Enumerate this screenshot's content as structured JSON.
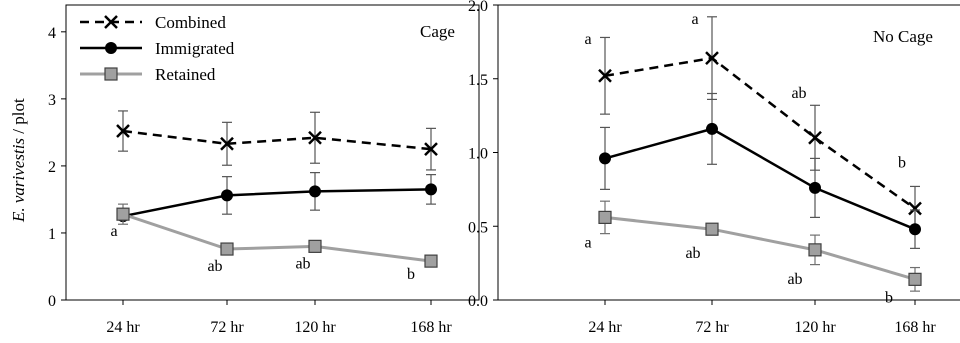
{
  "chart_data": [
    {
      "type": "line",
      "panel_label": "Cage",
      "ylabel_italic": "E. varivestis",
      "ylabel_rest": " / plot",
      "categories": [
        "24 hr",
        "72 hr",
        "120 hr",
        "168 hr"
      ],
      "ylim": [
        0,
        4.4
      ],
      "yticks": [
        "0",
        "1",
        "2",
        "3",
        "4"
      ],
      "grid": false,
      "legend": "top-left",
      "series": [
        {
          "name": "Combined",
          "style": "dashed",
          "color": "#000000",
          "marker": "x",
          "values": [
            2.52,
            2.33,
            2.42,
            2.25
          ],
          "errors": [
            0.3,
            0.32,
            0.38,
            0.31
          ]
        },
        {
          "name": "Immigrated",
          "style": "solid",
          "color": "#000000",
          "marker": "circle",
          "values": [
            1.25,
            1.56,
            1.62,
            1.65
          ],
          "errors": [
            0.0,
            0.28,
            0.28,
            0.22
          ]
        },
        {
          "name": "Retained",
          "style": "solid",
          "color": "#a0a0a0",
          "marker": "square",
          "values": [
            1.28,
            0.76,
            0.8,
            0.58
          ],
          "errors": [
            0.15,
            0.0,
            0.0,
            0.0
          ]
        }
      ],
      "annotations": [
        {
          "text": "a",
          "series": "Retained",
          "index": 0
        },
        {
          "text": "ab",
          "series": "Retained",
          "index": 1
        },
        {
          "text": "ab",
          "series": "Retained",
          "index": 2
        },
        {
          "text": "b",
          "series": "Retained",
          "index": 3
        }
      ]
    },
    {
      "type": "line",
      "panel_label": "No Cage",
      "categories": [
        "24 hr",
        "72 hr",
        "120 hr",
        "168 hr"
      ],
      "ylim": [
        0,
        2.0
      ],
      "yticks": [
        "0.0",
        "0.5",
        "1.0",
        "1.5",
        "2.0"
      ],
      "grid": false,
      "series": [
        {
          "name": "Combined",
          "style": "dashed",
          "color": "#000000",
          "marker": "x",
          "values": [
            1.52,
            1.64,
            1.1,
            0.62
          ],
          "errors": [
            0.26,
            0.28,
            0.22,
            0.15
          ]
        },
        {
          "name": "Immigrated",
          "style": "solid",
          "color": "#000000",
          "marker": "circle",
          "values": [
            0.96,
            1.16,
            0.76,
            0.48
          ],
          "errors": [
            0.21,
            0.24,
            0.2,
            0.13
          ]
        },
        {
          "name": "Retained",
          "style": "solid",
          "color": "#a0a0a0",
          "marker": "square",
          "values": [
            0.56,
            0.48,
            0.34,
            0.14
          ],
          "errors": [
            0.11,
            0.0,
            0.1,
            0.08
          ]
        }
      ],
      "annotations": [
        {
          "text": "a",
          "series": "Combined",
          "index": 0
        },
        {
          "text": "a",
          "series": "Combined",
          "index": 1
        },
        {
          "text": "ab",
          "series": "Combined",
          "index": 2
        },
        {
          "text": "b",
          "series": "Combined",
          "index": 3
        },
        {
          "text": "a",
          "series": "Retained",
          "index": 0
        },
        {
          "text": "ab",
          "series": "Retained",
          "index": 1
        },
        {
          "text": "ab",
          "series": "Retained",
          "index": 2
        },
        {
          "text": "b",
          "series": "Retained",
          "index": 3
        }
      ]
    }
  ]
}
